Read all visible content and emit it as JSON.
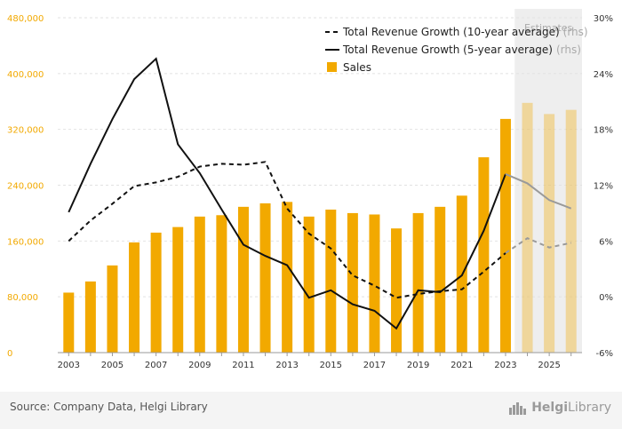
{
  "chart_data": {
    "type": "bar",
    "categories": [
      "2003",
      "2004",
      "2005",
      "2006",
      "2007",
      "2008",
      "2009",
      "2010",
      "2011",
      "2012",
      "2013",
      "2014",
      "2015",
      "2016",
      "2017",
      "2018",
      "2019",
      "2020",
      "2021",
      "2022",
      "2023",
      "2024",
      "2025",
      "2026"
    ],
    "x_tick_labels": [
      "2003",
      "2005",
      "2007",
      "2009",
      "2011",
      "2013",
      "2015",
      "2017",
      "2019",
      "2021",
      "2023",
      "2025"
    ],
    "estimates_from": "2024",
    "estimates_label": "Estimates",
    "y_left": {
      "ticks": [
        "0",
        "80,000",
        "160,000",
        "240,000",
        "320,000",
        "400,000",
        "480,000"
      ],
      "lim": [
        0,
        480000
      ]
    },
    "y_right": {
      "ticks": [
        "-6%",
        "0%",
        "6%",
        "12%",
        "18%",
        "24%",
        "30%"
      ],
      "lim": [
        -6,
        30
      ]
    },
    "series": [
      {
        "name": "Sales",
        "type": "bar",
        "axis": "left",
        "color": "#f2a900",
        "values": [
          86000,
          102000,
          125000,
          158000,
          172000,
          180000,
          195000,
          197000,
          209000,
          214000,
          216000,
          195000,
          205000,
          200000,
          198000,
          178000,
          200000,
          209000,
          225000,
          280000,
          335000,
          358000,
          342000,
          348000
        ]
      },
      {
        "name": "Total Revenue Growth (10-year average)",
        "axis_note": "(rhs)",
        "type": "line",
        "style": "dashed",
        "axis": "right",
        "color": "#111111",
        "values": [
          6.0,
          8.2,
          10.0,
          11.9,
          12.3,
          12.9,
          14.0,
          14.3,
          14.2,
          14.5,
          9.5,
          6.8,
          5.2,
          2.3,
          1.2,
          -0.1,
          0.3,
          0.6,
          0.8,
          2.7,
          4.7,
          6.3,
          5.3,
          5.8
        ]
      },
      {
        "name": "Total Revenue Growth (5-year average)",
        "axis_note": "(rhs)",
        "type": "line",
        "style": "solid",
        "axis": "right",
        "color": "#111111",
        "values": [
          9.1,
          14.3,
          19.1,
          23.4,
          25.6,
          16.4,
          13.3,
          9.4,
          5.6,
          4.4,
          3.4,
          -0.1,
          0.7,
          -0.8,
          -1.5,
          -3.4,
          0.7,
          0.5,
          2.3,
          7.1,
          13.2,
          12.2,
          10.4,
          9.5
        ]
      }
    ],
    "legend_position": "top-right",
    "grid": true
  },
  "footer": {
    "source": "Source: Company Data, Helgi Library",
    "logo_text_a": "Helgi",
    "logo_text_b": "Library"
  },
  "icons": {
    "logo": "helgi-library-logo-icon"
  }
}
